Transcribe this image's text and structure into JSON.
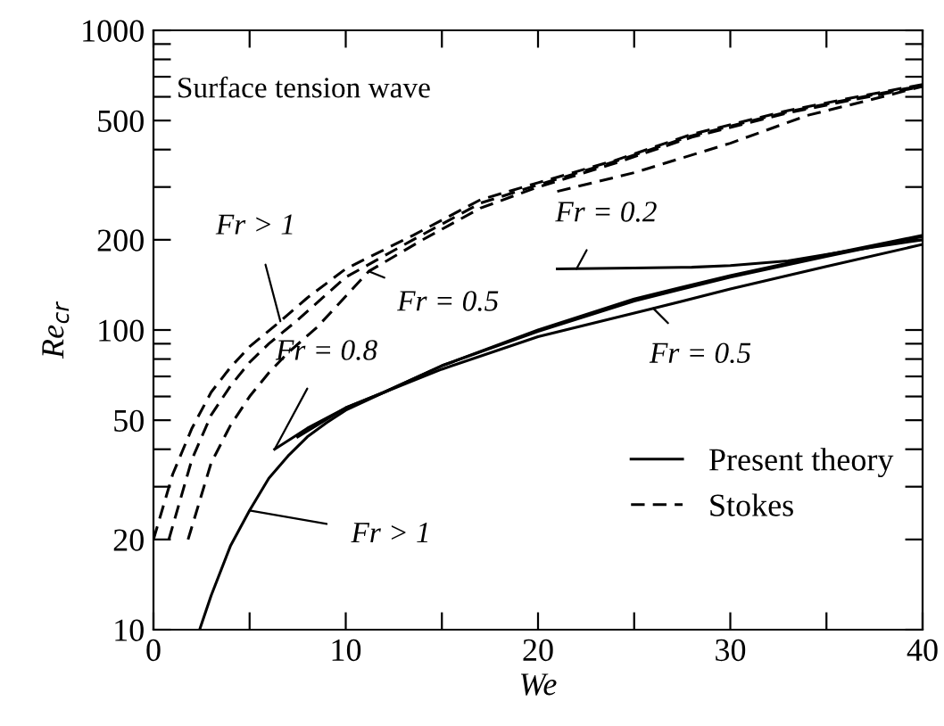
{
  "chart_data": {
    "type": "line",
    "xlabel": "We",
    "ylabel": "Re$_{cr}$",
    "log": "y",
    "grid": false,
    "legend": "bottom right",
    "xlim": [
      0,
      40
    ],
    "ylim": [
      10,
      1000
    ],
    "xticks": [
      0,
      {
        "value": 5,
        "label": null
      },
      10,
      {
        "value": 15,
        "label": null
      },
      20,
      {
        "value": 25,
        "label": null
      },
      30,
      {
        "value": 35,
        "label": null
      },
      40
    ],
    "yticks": [
      10,
      20,
      {
        "value": 30,
        "label": null
      },
      {
        "value": 40,
        "label": null
      },
      50,
      {
        "value": 60,
        "label": null
      },
      {
        "value": 70,
        "label": null
      },
      {
        "value": 80,
        "label": null
      },
      {
        "value": 90,
        "label": null
      },
      100,
      200,
      {
        "value": 300,
        "label": null
      },
      {
        "value": 400,
        "label": null
      },
      500,
      {
        "value": 600,
        "label": null
      },
      {
        "value": 700,
        "label": null
      },
      {
        "value": 800,
        "label": null
      },
      {
        "value": 900,
        "label": null
      },
      1000
    ],
    "series": [
      {
        "name": "Present theory",
        "color": "#000000",
        "line_style": "solid",
        "x": [
          2.4,
          3,
          4,
          5,
          6,
          7,
          8,
          9,
          10,
          12,
          15,
          20,
          25,
          30,
          35,
          40
        ],
        "values": [
          10,
          13,
          19,
          25,
          32,
          38,
          44,
          49,
          54,
          62,
          76,
          100,
          127,
          152,
          178,
          207
        ]
      },
      {
        "color": "#000000",
        "line_style": "solid",
        "x": [
          6.3,
          8,
          10,
          12,
          15,
          20,
          25,
          30,
          35,
          40
        ],
        "values": [
          40,
          47,
          55,
          62,
          76,
          99,
          125,
          150,
          176,
          205
        ]
      },
      {
        "color": "#000000",
        "line_style": "solid",
        "x": [
          7.5,
          10,
          12,
          15,
          20,
          26,
          30,
          35,
          40
        ],
        "values": [
          44,
          55,
          62,
          74,
          95,
          118,
          137,
          163,
          193
        ]
      },
      {
        "color": "#000000",
        "line_style": "solid",
        "x": [
          21,
          25,
          28,
          30,
          33,
          36,
          40
        ],
        "values": [
          160,
          161,
          162,
          164,
          170,
          183,
          200
        ]
      },
      {
        "name": "Stokes",
        "color": "#000000",
        "line_style": "dashed",
        "x": [
          0,
          1,
          2,
          3,
          4,
          5,
          6.6,
          8,
          10,
          13.5,
          17,
          20,
          24,
          28,
          33,
          36,
          40
        ],
        "values": [
          20,
          33,
          47,
          62,
          75,
          88,
          107,
          128,
          160,
          207,
          272,
          310,
          368,
          450,
          540,
          590,
          660
        ]
      },
      {
        "color": "#000000",
        "line_style": "dashed",
        "x": [
          0.8,
          2,
          3,
          4,
          5,
          6,
          7.5,
          10,
          13.5,
          17,
          20,
          24,
          28,
          33,
          36,
          40
        ],
        "values": [
          20,
          37,
          52,
          65,
          78,
          90,
          108,
          150,
          200,
          265,
          305,
          365,
          445,
          535,
          585,
          655
        ]
      },
      {
        "color": "#000000",
        "line_style": "dashed",
        "x": [
          1.8,
          3,
          4,
          5,
          6,
          7,
          8.5,
          11.2,
          14,
          17,
          20,
          24,
          28,
          33,
          36,
          40
        ],
        "values": [
          20,
          36,
          48,
          60,
          72,
          84,
          102,
          157,
          200,
          255,
          300,
          360,
          440,
          530,
          580,
          650
        ]
      },
      {
        "color": "#000000",
        "line_style": "dashed",
        "x": [
          21,
          25,
          30,
          34,
          37,
          40
        ],
        "values": [
          290,
          335,
          420,
          520,
          580,
          650
        ]
      }
    ],
    "annotations": [
      "Surface tension wave",
      {
        "text": "Fr > 1",
        "x": 6.6,
        "y": 107
      },
      {
        "text": "Fr = 0.5",
        "x": 11.2,
        "y": 157
      },
      {
        "text": "Fr = 0.8",
        "x": 6.3,
        "y": 40
      },
      {
        "text": "Fr = 0.2",
        "x": 22,
        "y": 160
      },
      {
        "text": "Fr = 0.5",
        "x": 26,
        "y": 118
      },
      {
        "text": "Fr > 1",
        "x": 5,
        "y": 25
      }
    ]
  }
}
